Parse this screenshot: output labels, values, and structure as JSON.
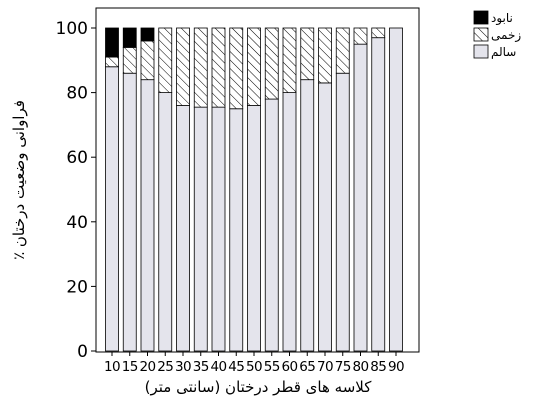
{
  "chart_data": {
    "type": "bar",
    "stacked": true,
    "orientation": "vertical",
    "xlabel": "کلاسه های قطر درختان (سانتی متر)",
    "ylabel": "٪ فراوانی وضعیت درختان",
    "ylim": [
      0,
      100
    ],
    "yticks": [
      "0",
      "20",
      "40",
      "60",
      "80",
      "100"
    ],
    "categories": [
      "10",
      "15",
      "20",
      "25",
      "30",
      "35",
      "40",
      "45",
      "50",
      "55",
      "60",
      "65",
      "70",
      "75",
      "80",
      "85",
      "90"
    ],
    "series": [
      {
        "name": "سالم",
        "color": "#e4e4ec",
        "pattern": "solid",
        "values": [
          88,
          86,
          84,
          80,
          76,
          75.5,
          75.5,
          75,
          76,
          78,
          80,
          84,
          83,
          86,
          95,
          97,
          100
        ]
      },
      {
        "name": "زخمی",
        "color": "#ffffff",
        "pattern": "hatch",
        "values": [
          3,
          8,
          12,
          20,
          24,
          24.5,
          24.5,
          25,
          24,
          22,
          20,
          16,
          17,
          14,
          5,
          3,
          0
        ]
      },
      {
        "name": "نابود",
        "color": "#000000",
        "pattern": "solid",
        "values": [
          9,
          6,
          4,
          0,
          0,
          0,
          0,
          0,
          0,
          0,
          0,
          0,
          0,
          0,
          0,
          0,
          0
        ]
      }
    ],
    "legend": {
      "placement": "top-right",
      "order": [
        "نابود",
        "زخمی",
        "سالم"
      ]
    },
    "grid": false
  }
}
